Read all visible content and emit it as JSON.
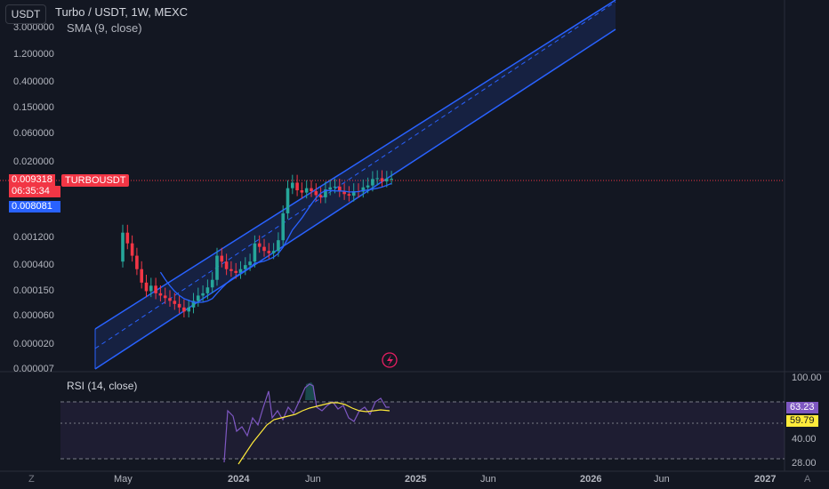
{
  "header": {
    "symbol_button": "USDT",
    "title": "Turbo / USDT, 1W, MEXC",
    "indicator": "SMA (9, close)"
  },
  "price_axis": {
    "ticks": [
      "3.000000",
      "1.200000",
      "0.400000",
      "0.150000",
      "0.060000",
      "0.020000",
      "0.001200",
      "0.000400",
      "0.000150",
      "0.000060",
      "0.000020",
      "0.000007"
    ],
    "last_price": "0.009318",
    "countdown": "06:35:34",
    "sma_value": "0.008081",
    "series_label": "TURBOUSDT"
  },
  "rsi": {
    "title": "RSI (14, close)",
    "ticks": [
      "100.00",
      "40.00",
      "28.00"
    ],
    "value_rsi": "63.23",
    "value_ma": "59.79"
  },
  "time_axis": {
    "labels": [
      "May",
      "2024",
      "Jun",
      "2025",
      "Jun",
      "2026",
      "Jun",
      "2027"
    ]
  },
  "corners": {
    "left": "Z",
    "right": "A"
  },
  "colors": {
    "up": "#26a69a",
    "down": "#f23645",
    "channel": "#2962ff",
    "sma": "#2962ff",
    "rsi_line": "#7e57c2",
    "rsi_ma": "#ffeb3b"
  },
  "chart_data": {
    "type": "candlestick",
    "scale": "log",
    "series": [
      {
        "name": "TURBOUSDT",
        "closes": [
          0.0012,
          0.0008,
          0.0005,
          0.0003,
          0.00018,
          0.00013,
          0.00016,
          0.00012,
          0.00011,
          0.0001,
          9e-05,
          8e-05,
          7e-05,
          6e-05,
          7e-05,
          9e-05,
          0.00011,
          0.00012,
          0.00015,
          0.0002,
          0.0005,
          0.0004,
          0.0003,
          0.00028,
          0.00026,
          0.0003,
          0.00035,
          0.0004,
          0.0008,
          0.0007,
          0.0006,
          0.00055,
          0.0006,
          0.0009,
          0.0025,
          0.0065,
          0.008,
          0.006,
          0.0055,
          0.0065,
          0.0058,
          0.005,
          0.0046,
          0.0062,
          0.0067,
          0.0069,
          0.0058,
          0.0052,
          0.0049,
          0.0058,
          0.0057,
          0.0067,
          0.0072,
          0.0092,
          0.0095,
          0.0084,
          0.0093,
          0.0093
        ]
      }
    ]
  }
}
